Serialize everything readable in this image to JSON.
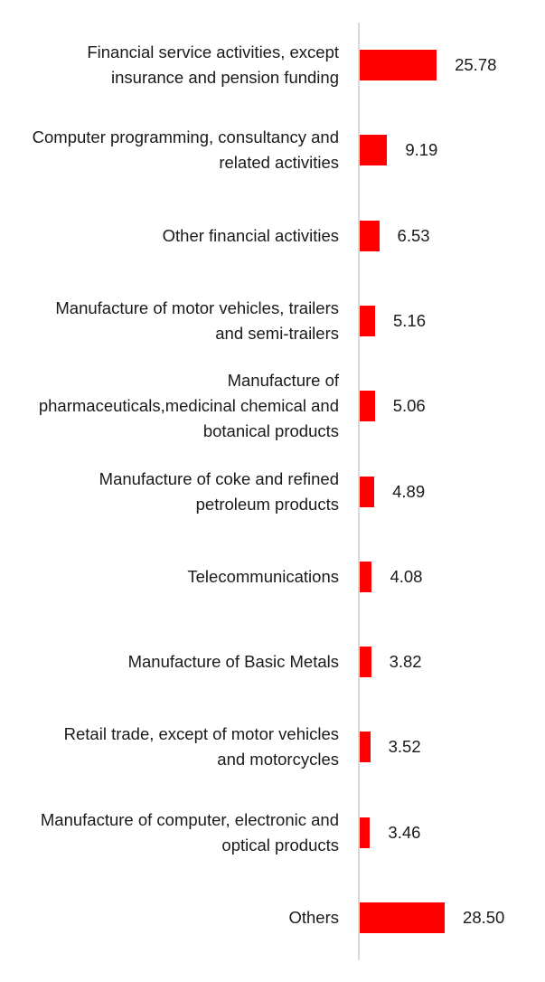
{
  "chart_data": {
    "type": "bar",
    "orientation": "horizontal",
    "color": "#ff0000",
    "categories": [
      "Financial service activities, except insurance and pension funding",
      "Computer programming, consultancy and related activities",
      "Other financial activities",
      "Manufacture of motor vehicles, trailers and semi-trailers",
      "Manufacture of pharmaceuticals,medicinal chemical and botanical products",
      "Manufacture of coke and refined petroleum products",
      "Telecommunications",
      "Manufacture of Basic Metals",
      "Retail trade, except of motor vehicles and motorcycles",
      "Manufacture of computer, electronic and optical products",
      "Others"
    ],
    "values": [
      25.78,
      9.19,
      6.53,
      5.16,
      5.06,
      4.89,
      4.08,
      3.82,
      3.52,
      3.46,
      28.5
    ],
    "value_labels": [
      "25.78",
      "9.19",
      "6.53",
      "5.16",
      "5.06",
      "4.89",
      "4.08",
      "3.82",
      "3.52",
      "3.46",
      "28.50"
    ]
  }
}
